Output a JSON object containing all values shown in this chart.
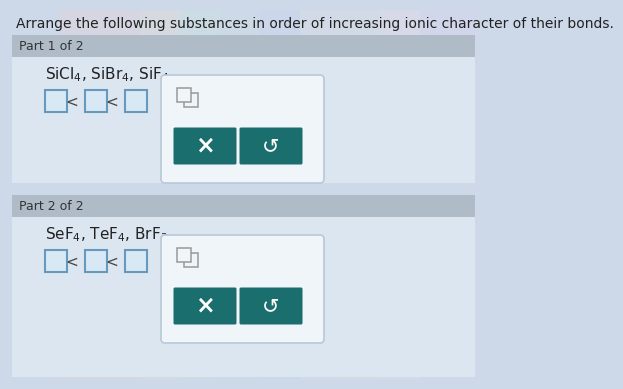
{
  "title": "Arrange the following substances in order of increasing ionic character of their bonds.",
  "title_fontsize": 10,
  "title_color": "#222222",
  "bg_color": "#cdd8e8",
  "part_label_bg": "#b0bbc8",
  "part_label_color": "#333333",
  "part1_label": "Part 1 of 2",
  "part2_label": "Part 2 of 2",
  "part1_substances": "SiCl$_{4}$, SiBr$_{4}$, SiF$_{4}$",
  "part2_substances": "SeF$_{4}$, TeF$_{4}$, BrF$_{3}$",
  "part1_answer": "□  <  □  <  □",
  "part2_answer": "□  <  □  <  □",
  "section_panel_bg": "#dce6f0",
  "popup_bg": "#f0f5fa",
  "popup_border": "#b8c8d8",
  "button_bg": "#1a6e6e",
  "button_x_text": "×",
  "button_undo_text": "↺",
  "button_text_color": "#ffffff",
  "icon_color": "#888888"
}
